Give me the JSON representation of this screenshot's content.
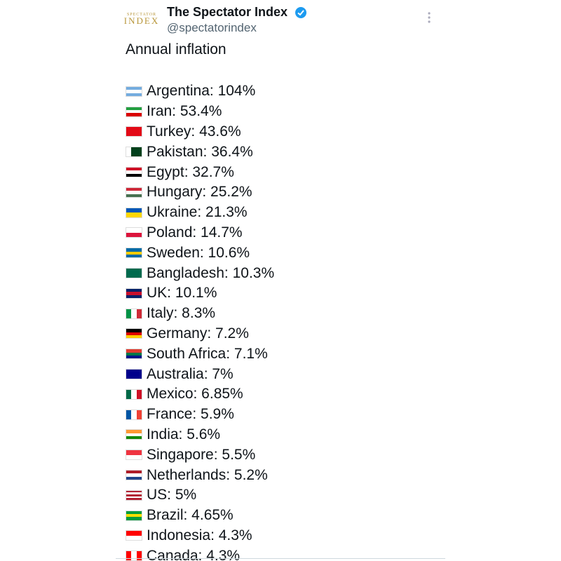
{
  "header": {
    "logo_top": "SPECTATOR",
    "logo_bottom": "INDEX",
    "name": "The Spectator Index",
    "handle": "@spectatorindex"
  },
  "body": {
    "title": "Annual inflation",
    "items": [
      {
        "label": "Argentina: 104%",
        "flag": [
          "#74acdf",
          "#ffffff",
          "#74acdf"
        ],
        "stripes": "h"
      },
      {
        "label": "Iran: 53.4%",
        "flag": [
          "#239f40",
          "#ffffff",
          "#da0000"
        ],
        "stripes": "h"
      },
      {
        "label": "Turkey: 43.6%",
        "flag": [
          "#e30a17"
        ],
        "stripes": "h"
      },
      {
        "label": "Pakistan: 36.4%",
        "flag": [
          "#ffffff",
          "#01411c",
          "#01411c"
        ],
        "stripes": "v"
      },
      {
        "label": "Egypt: 32.7%",
        "flag": [
          "#ce1126",
          "#ffffff",
          "#000000"
        ],
        "stripes": "h"
      },
      {
        "label": "Hungary: 25.2%",
        "flag": [
          "#ce2939",
          "#ffffff",
          "#477050"
        ],
        "stripes": "h"
      },
      {
        "label": "Ukraine: 21.3%",
        "flag": [
          "#0057b7",
          "#ffd700"
        ],
        "stripes": "h"
      },
      {
        "label": "Poland: 14.7%",
        "flag": [
          "#ffffff",
          "#dc143c"
        ],
        "stripes": "h"
      },
      {
        "label": "Sweden: 10.6%",
        "flag": [
          "#006aa7",
          "#fecc00",
          "#006aa7"
        ],
        "stripes": "h"
      },
      {
        "label": "Bangladesh: 10.3%",
        "flag": [
          "#006a4e"
        ],
        "stripes": "h"
      },
      {
        "label": "UK: 10.1%",
        "flag": [
          "#012169",
          "#c8102e",
          "#012169"
        ],
        "stripes": "h"
      },
      {
        "label": "Italy: 8.3%",
        "flag": [
          "#009246",
          "#ffffff",
          "#ce2b37"
        ],
        "stripes": "v"
      },
      {
        "label": "Germany: 7.2%",
        "flag": [
          "#000000",
          "#dd0000",
          "#ffce00"
        ],
        "stripes": "h"
      },
      {
        "label": "South Africa: 7.1%",
        "flag": [
          "#e03c31",
          "#007749",
          "#001489"
        ],
        "stripes": "h"
      },
      {
        "label": "Australia: 7%",
        "flag": [
          "#00008b"
        ],
        "stripes": "h"
      },
      {
        "label": "Mexico: 6.85%",
        "flag": [
          "#006847",
          "#ffffff",
          "#ce1126"
        ],
        "stripes": "v"
      },
      {
        "label": "France: 5.9%",
        "flag": [
          "#0055a4",
          "#ffffff",
          "#ef4135"
        ],
        "stripes": "v"
      },
      {
        "label": "India: 5.6%",
        "flag": [
          "#ff9933",
          "#ffffff",
          "#138808"
        ],
        "stripes": "h"
      },
      {
        "label": "Singapore: 5.5%",
        "flag": [
          "#ef3340",
          "#ffffff"
        ],
        "stripes": "h"
      },
      {
        "label": "Netherlands: 5.2%",
        "flag": [
          "#ae1c28",
          "#ffffff",
          "#21468b"
        ],
        "stripes": "h"
      },
      {
        "label": "US: 5%",
        "flag": [
          "#b22234",
          "#ffffff",
          "#b22234",
          "#ffffff",
          "#b22234"
        ],
        "stripes": "h"
      },
      {
        "label": "Brazil: 4.65%",
        "flag": [
          "#009c3b",
          "#ffdf00",
          "#009c3b"
        ],
        "stripes": "h"
      },
      {
        "label": "Indonesia: 4.3%",
        "flag": [
          "#ff0000",
          "#ffffff"
        ],
        "stripes": "h"
      },
      {
        "label": "Canada: 4.3%",
        "flag": [
          "#ff0000",
          "#ffffff",
          "#ff0000"
        ],
        "stripes": "v"
      }
    ]
  }
}
